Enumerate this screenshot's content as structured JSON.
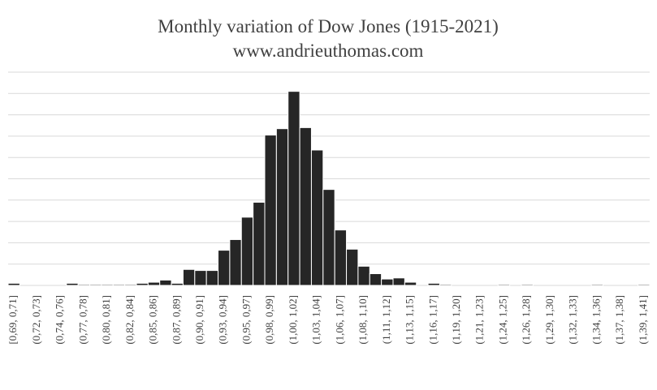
{
  "chart_data": {
    "type": "bar",
    "title": "Monthly variation of Dow Jones (1915-2021)",
    "subtitle": "www.andrieuthomas.com",
    "categories": [
      "[0,69, 0,71]",
      null,
      "(0,72, 0,73]",
      null,
      "(0,74, 0,76]",
      null,
      "(0,77, 0,78]",
      null,
      "(0,80, 0,81]",
      null,
      "(0,82, 0,84]",
      null,
      "(0,85, 0,86]",
      null,
      "(0,87, 0,89]",
      null,
      "(0,90, 0,91]",
      null,
      "(0,93, 0,94]",
      null,
      "(0,95, 0,97]",
      null,
      "(0,98, 0,99]",
      null,
      "(1,00, 1,02]",
      null,
      "(1,03, 1,04]",
      null,
      "(1,06, 1,07]",
      null,
      "(1,08, 1,10]",
      null,
      "(1,11, 1,12]",
      null,
      "(1,13, 1,15]",
      null,
      "(1,16, 1,17]",
      null,
      "(1,19, 1,20]",
      null,
      "(1,21, 1,23]",
      null,
      "(1,24, 1,25]",
      null,
      "(1,26, 1,28]",
      null,
      "(1,29, 1,30]",
      null,
      "(1,32, 1,33]",
      null,
      "(1,34, 1,36]",
      null,
      "(1,37, 1,38]",
      null,
      "(1,39, 1,41]"
    ],
    "values": [
      0.1,
      0,
      0,
      0,
      0,
      0.1,
      0.05,
      0.05,
      0.05,
      0.05,
      0.05,
      0.1,
      0.15,
      0.25,
      0.1,
      0.75,
      0.7,
      0.7,
      1.65,
      2.15,
      3.2,
      3.9,
      7.05,
      7.35,
      9.1,
      7.4,
      6.35,
      4.5,
      2.6,
      1.7,
      0.9,
      0.55,
      0.3,
      0.35,
      0.15,
      0,
      0.1,
      0.05,
      0,
      0,
      0,
      0,
      0.05,
      0,
      0.05,
      0,
      0,
      0,
      0,
      0,
      0.05,
      0,
      0,
      0,
      0.05
    ],
    "color": "#262626",
    "ylim": [
      0,
      10
    ],
    "yticks": [
      0,
      1,
      2,
      3,
      4,
      5,
      6,
      7,
      8,
      9,
      10
    ],
    "grid": true
  }
}
